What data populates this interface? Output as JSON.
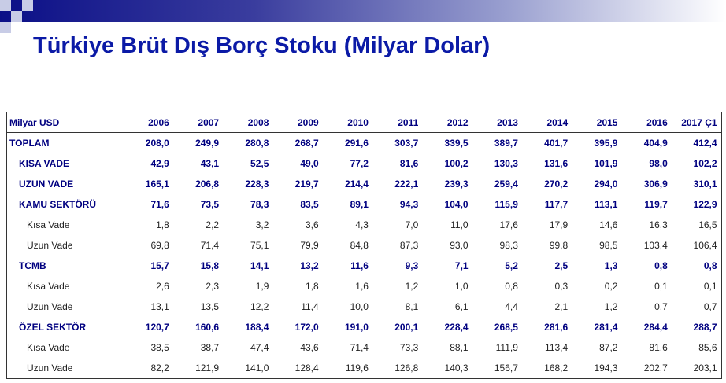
{
  "title": "Türkiye Brüt Dış Borç Stoku (Milyar Dolar)",
  "colors": {
    "title": "#0b1aa6",
    "header": "#000080",
    "banner": "#0b0f87"
  },
  "table": {
    "columns": [
      "Milyar USD",
      "2006",
      "2007",
      "2008",
      "2009",
      "2010",
      "2011",
      "2012",
      "2013",
      "2014",
      "2015",
      "2016",
      "2017 Ç1"
    ],
    "rows": [
      {
        "label": "TOPLAM",
        "bold": true,
        "indent": 0,
        "values": [
          "208,0",
          "249,9",
          "280,8",
          "268,7",
          "291,6",
          "303,7",
          "339,5",
          "389,7",
          "401,7",
          "395,9",
          "404,9",
          "412,4"
        ]
      },
      {
        "label": "KISA VADE",
        "bold": true,
        "indent": 1,
        "values": [
          "42,9",
          "43,1",
          "52,5",
          "49,0",
          "77,2",
          "81,6",
          "100,2",
          "130,3",
          "131,6",
          "101,9",
          "98,0",
          "102,2"
        ]
      },
      {
        "label": "UZUN VADE",
        "bold": true,
        "indent": 1,
        "values": [
          "165,1",
          "206,8",
          "228,3",
          "219,7",
          "214,4",
          "222,1",
          "239,3",
          "259,4",
          "270,2",
          "294,0",
          "306,9",
          "310,1"
        ]
      },
      {
        "label": "KAMU SEKTÖRÜ",
        "bold": true,
        "indent": 1,
        "values": [
          "71,6",
          "73,5",
          "78,3",
          "83,5",
          "89,1",
          "94,3",
          "104,0",
          "115,9",
          "117,7",
          "113,1",
          "119,7",
          "122,9"
        ]
      },
      {
        "label": "Kısa Vade",
        "bold": false,
        "indent": 2,
        "values": [
          "1,8",
          "2,2",
          "3,2",
          "3,6",
          "4,3",
          "7,0",
          "11,0",
          "17,6",
          "17,9",
          "14,6",
          "16,3",
          "16,5"
        ]
      },
      {
        "label": "Uzun Vade",
        "bold": false,
        "indent": 2,
        "values": [
          "69,8",
          "71,4",
          "75,1",
          "79,9",
          "84,8",
          "87,3",
          "93,0",
          "98,3",
          "99,8",
          "98,5",
          "103,4",
          "106,4"
        ]
      },
      {
        "label": "TCMB",
        "bold": true,
        "indent": 1,
        "values": [
          "15,7",
          "15,8",
          "14,1",
          "13,2",
          "11,6",
          "9,3",
          "7,1",
          "5,2",
          "2,5",
          "1,3",
          "0,8",
          "0,8"
        ]
      },
      {
        "label": "Kısa Vade",
        "bold": false,
        "indent": 2,
        "values": [
          "2,6",
          "2,3",
          "1,9",
          "1,8",
          "1,6",
          "1,2",
          "1,0",
          "0,8",
          "0,3",
          "0,2",
          "0,1",
          "0,1"
        ]
      },
      {
        "label": "Uzun Vade",
        "bold": false,
        "indent": 2,
        "values": [
          "13,1",
          "13,5",
          "12,2",
          "11,4",
          "10,0",
          "8,1",
          "6,1",
          "4,4",
          "2,1",
          "1,2",
          "0,7",
          "0,7"
        ]
      },
      {
        "label": "ÖZEL SEKTÖR",
        "bold": true,
        "indent": 1,
        "values": [
          "120,7",
          "160,6",
          "188,4",
          "172,0",
          "191,0",
          "200,1",
          "228,4",
          "268,5",
          "281,6",
          "281,4",
          "284,4",
          "288,7"
        ]
      },
      {
        "label": "Kısa Vade",
        "bold": false,
        "indent": 2,
        "values": [
          "38,5",
          "38,7",
          "47,4",
          "43,6",
          "71,4",
          "73,3",
          "88,1",
          "111,9",
          "113,4",
          "87,2",
          "81,6",
          "85,6"
        ]
      },
      {
        "label": "Uzun Vade",
        "bold": false,
        "indent": 2,
        "values": [
          "82,2",
          "121,9",
          "141,0",
          "128,4",
          "119,6",
          "126,8",
          "140,3",
          "156,7",
          "168,2",
          "194,3",
          "202,7",
          "203,1"
        ]
      }
    ]
  }
}
